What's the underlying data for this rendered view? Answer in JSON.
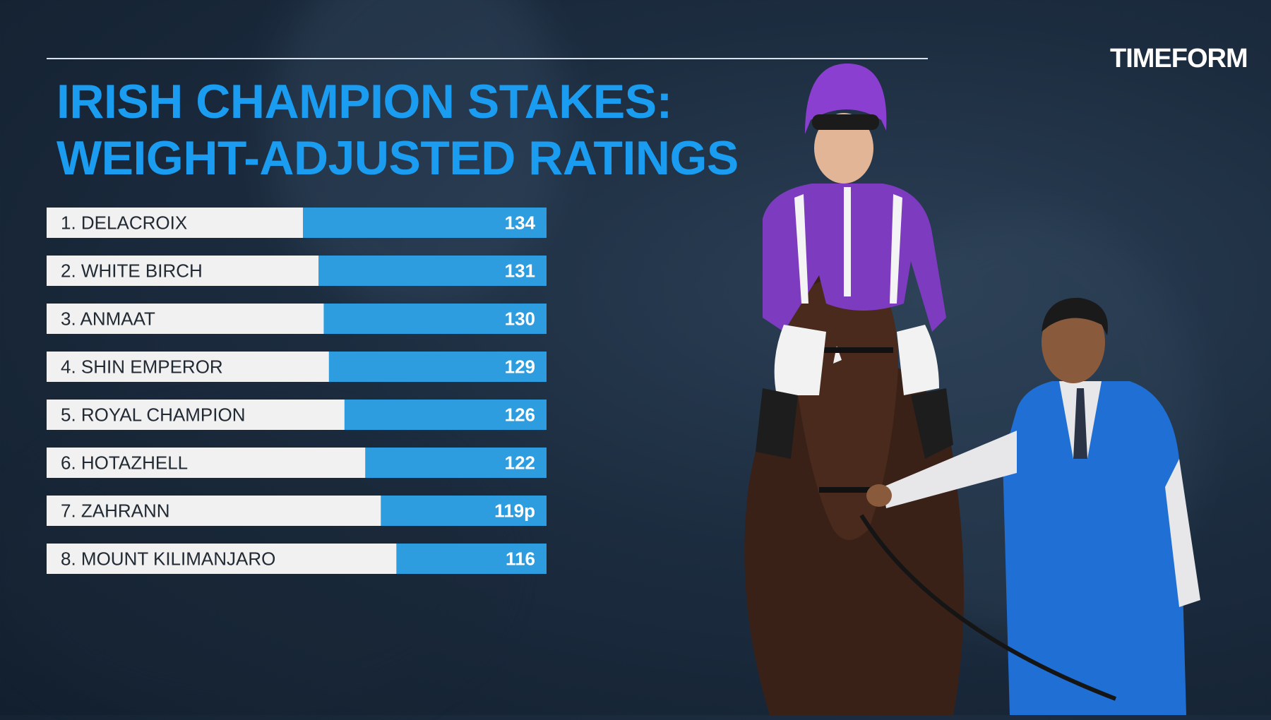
{
  "brand": {
    "logo_text": "TIMEFORM",
    "accent": "#1a9cf0",
    "bar_blue": "#2d9de0",
    "bar_white": "#f1f1f1"
  },
  "title": {
    "line1": "IRISH CHAMPION STAKES:",
    "line2": "WEIGHT-ADJUSTED RATINGS"
  },
  "chart_data": {
    "type": "bar",
    "orientation": "horizontal",
    "title": "IRISH CHAMPION STAKES: WEIGHT-ADJUSTED RATINGS",
    "categories": [
      "1.   DELACROIX",
      "2. WHITE BIRCH",
      "3.  ANMAAT",
      "4. SHIN EMPEROR",
      "5.  ROYAL CHAMPION",
      "6. HOTAZHELL",
      "7. ZAHRANN",
      "8. MOUNT KILIMANJARO"
    ],
    "values": [
      134,
      131,
      130,
      129,
      126,
      122,
      119,
      116
    ],
    "value_labels": [
      "134",
      "131",
      "130",
      "129",
      "126",
      "122",
      "119p",
      "116"
    ],
    "grid": false,
    "legend": "none"
  },
  "illustration": {
    "description_icon": "jockey-horse-groom-photo"
  }
}
